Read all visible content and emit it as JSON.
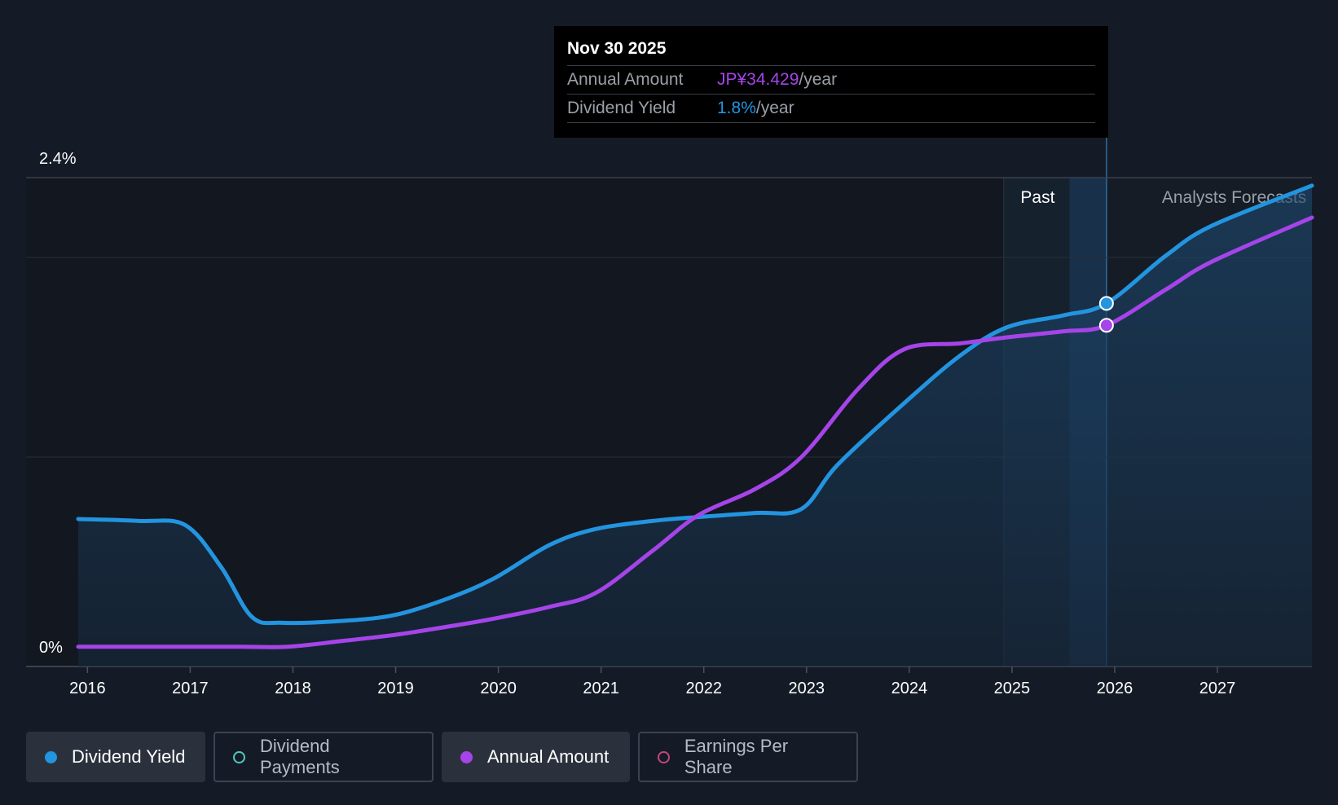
{
  "chart_data": {
    "type": "line",
    "y_ticks": [
      "2.4%",
      "0%"
    ],
    "ylim": [
      0,
      2.4
    ],
    "x_ticks": [
      "2016",
      "2017",
      "2018",
      "2019",
      "2020",
      "2021",
      "2022",
      "2023",
      "2024",
      "2025",
      "2026",
      "2027"
    ],
    "xlim": [
      2015.91,
      2027.92
    ],
    "regions": {
      "past_label": "Past",
      "forecast_label": "Analysts Forecasts"
    },
    "series": [
      {
        "name": "Dividend Yield",
        "color": "#2394df",
        "area": true,
        "x": [
          2015.91,
          2016.5,
          2016.95,
          2017.3,
          2017.6,
          2017.9,
          2018.5,
          2019.0,
          2019.5,
          2019.95,
          2020.5,
          2020.95,
          2021.5,
          2021.95,
          2022.5,
          2022.95,
          2023.3,
          2023.95,
          2024.5,
          2024.95,
          2025.5,
          2025.92,
          2026.5,
          2026.95,
          2027.92
        ],
        "values": [
          0.69,
          0.68,
          0.66,
          0.45,
          0.2,
          0.17,
          0.18,
          0.21,
          0.29,
          0.39,
          0.56,
          0.64,
          0.68,
          0.7,
          0.72,
          0.74,
          0.96,
          1.27,
          1.51,
          1.65,
          1.71,
          1.77,
          2.01,
          2.16,
          2.36
        ]
      },
      {
        "name": "Annual Amount",
        "color": "#a544e8",
        "x": [
          2015.91,
          2016.5,
          2017.0,
          2017.5,
          2017.95,
          2018.5,
          2019.0,
          2019.5,
          2019.95,
          2020.5,
          2020.95,
          2021.5,
          2021.95,
          2022.5,
          2022.95,
          2023.5,
          2023.95,
          2024.5,
          2024.95,
          2025.5,
          2025.92,
          2026.5,
          2026.95,
          2027.92
        ],
        "values": [
          0.05,
          0.05,
          0.05,
          0.05,
          0.05,
          0.08,
          0.11,
          0.15,
          0.19,
          0.25,
          0.32,
          0.53,
          0.71,
          0.84,
          1.0,
          1.34,
          1.54,
          1.57,
          1.6,
          1.63,
          1.66,
          1.84,
          1.98,
          2.2
        ]
      }
    ],
    "highlight": {
      "date": "Nov 30 2025",
      "x": 2025.92,
      "yield_value": 1.77,
      "amount_value": 1.66
    }
  },
  "tooltip": {
    "date": "Nov 30 2025",
    "amount_label": "Annual Amount",
    "amount_value": "JP¥34.429",
    "amount_unit": "/year",
    "yield_label": "Dividend Yield",
    "yield_value": "1.8%",
    "yield_unit": "/year",
    "amount_color": "#a544e8",
    "yield_color": "#2394df"
  },
  "legend": [
    {
      "label": "Dividend Yield",
      "color": "#2394df",
      "active": true,
      "filled": true
    },
    {
      "label": "Dividend Payments",
      "color": "#4fc9c0",
      "active": false,
      "filled": false
    },
    {
      "label": "Annual Amount",
      "color": "#a544e8",
      "active": true,
      "filled": true
    },
    {
      "label": "Earnings Per Share",
      "color": "#c2467e",
      "active": false,
      "filled": false
    }
  ]
}
